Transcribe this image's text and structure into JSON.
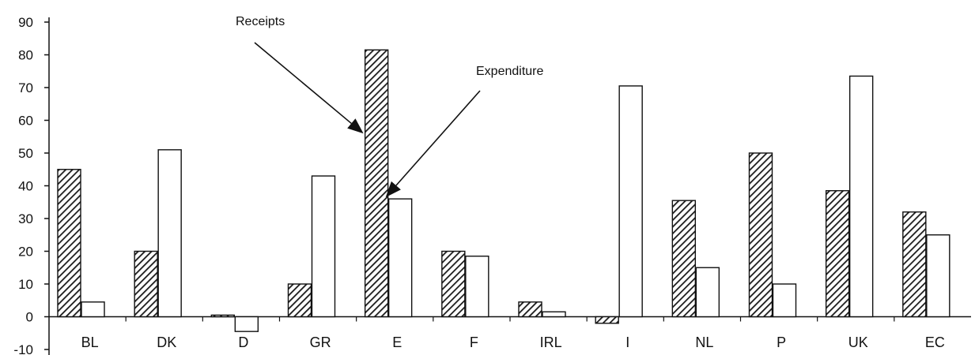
{
  "chart_data": {
    "type": "bar",
    "categories": [
      "BL",
      "DK",
      "D",
      "GR",
      "E",
      "F",
      "IRL",
      "I",
      "NL",
      "P",
      "UK",
      "EC"
    ],
    "series": [
      {
        "name": "Receipts",
        "values": [
          45,
          20,
          0.5,
          10,
          81.5,
          20,
          4.5,
          -2,
          35.5,
          50,
          38.5,
          32
        ]
      },
      {
        "name": "Expenditure",
        "values": [
          4.5,
          51,
          -4.5,
          43,
          36,
          18.5,
          1.5,
          70.5,
          15,
          10,
          73.5,
          25
        ]
      }
    ],
    "ylim": [
      -10,
      90
    ],
    "yticks": [
      -10,
      0,
      10,
      20,
      30,
      40,
      50,
      60,
      70,
      80,
      90
    ],
    "xlabel": "",
    "ylabel": "",
    "grid": false,
    "annotations": [
      {
        "text": "Receipts",
        "points_to": "E"
      },
      {
        "text": "Expenditure",
        "points_to": "E"
      }
    ],
    "colors": {
      "receipts": "#1a1a1a",
      "expenditure": "#ffffff",
      "axis": "#111111"
    }
  }
}
